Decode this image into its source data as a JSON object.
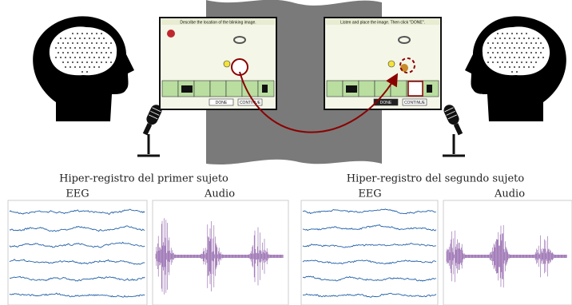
{
  "subjects": [
    {
      "title": "Hiper-registro del primer sujeto",
      "eeg": "EEG",
      "audio": "Audio"
    },
    {
      "title": "Hiper-registro del segundo sujeto",
      "eeg": "EEG",
      "audio": "Audio"
    }
  ],
  "screens": [
    {
      "instruction": "Describe the location of the blinking image.",
      "buttons": [
        "DONE",
        "CONTINUE"
      ]
    },
    {
      "instruction": "Listen and place the image. Then click \"DONE\".",
      "buttons": [
        "DONE",
        "CONTINUE"
      ]
    }
  ]
}
